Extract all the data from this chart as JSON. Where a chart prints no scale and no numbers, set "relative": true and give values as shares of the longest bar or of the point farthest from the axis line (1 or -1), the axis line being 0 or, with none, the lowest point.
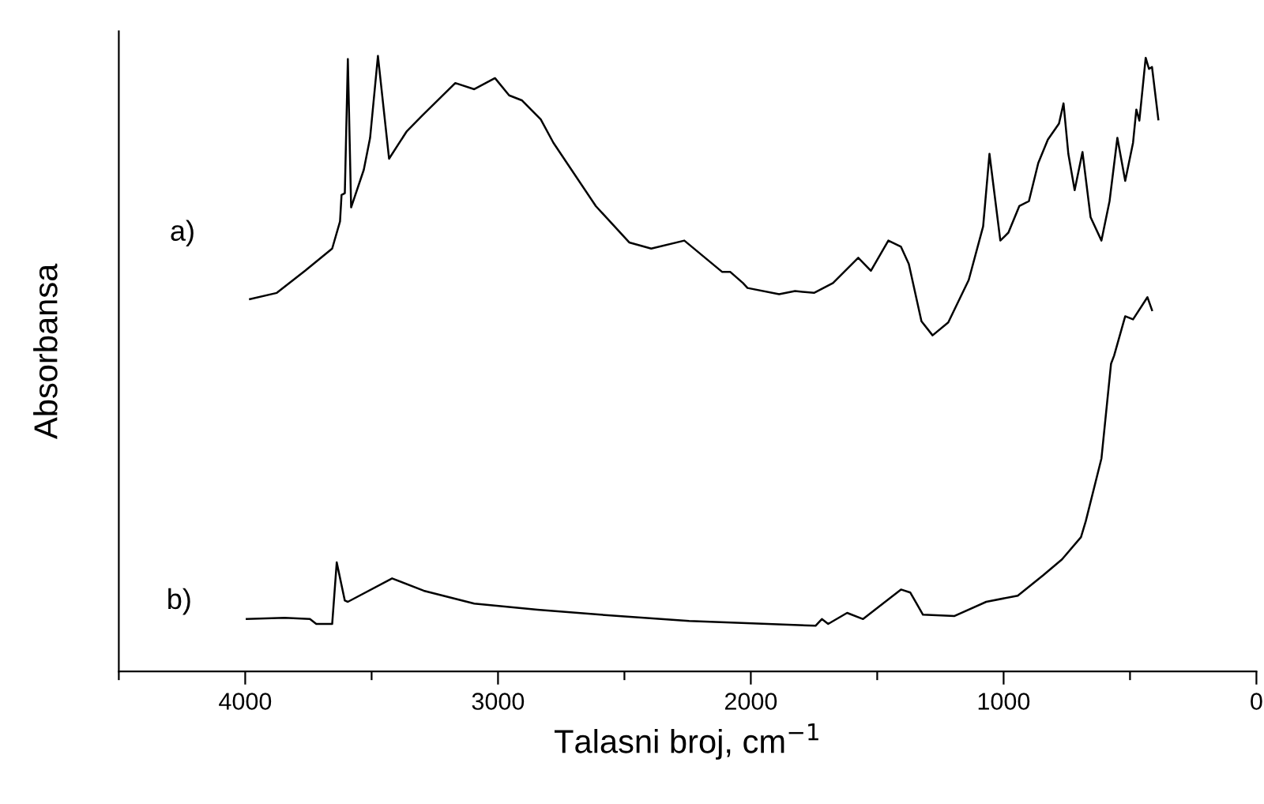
{
  "chart_data": {
    "type": "line",
    "relative": true,
    "xlabel": "Talasni broj, cm$^{−1}$",
    "ylabel": "Absorbansa",
    "xlim": [
      4500,
      0
    ],
    "xticks": [
      {
        "value": 4500,
        "label": null
      },
      4000,
      {
        "value": 3500,
        "label": null
      },
      3000,
      {
        "value": 2500,
        "label": null
      },
      2000,
      {
        "value": 1500,
        "label": null
      },
      1000,
      {
        "value": 500,
        "label": null
      },
      0
    ],
    "tick_labels": "x",
    "grid": false,
    "legend": false,
    "series": [
      {
        "name": "a)",
        "color": "#000000",
        "x": [
          3981,
          3875,
          3763,
          3656,
          3625,
          3619,
          3606,
          3594,
          3581,
          3531,
          3506,
          3475,
          3431,
          3362,
          3300,
          3169,
          3094,
          3012,
          2956,
          2906,
          2831,
          2781,
          2613,
          2481,
          2394,
          2263,
          2113,
          2081,
          2031,
          2013,
          1888,
          1825,
          1750,
          1675,
          1575,
          1525,
          1456,
          1406,
          1375,
          1325,
          1281,
          1219,
          1138,
          1081,
          1056,
          1013,
          981,
          938,
          900,
          863,
          825,
          781,
          763,
          744,
          719,
          688,
          656,
          613,
          581,
          550,
          519,
          488,
          475,
          463,
          438,
          425,
          413,
          388
        ],
        "values": [
          0.605,
          0.615,
          0.651,
          0.687,
          0.731,
          0.774,
          0.777,
          0.995,
          0.754,
          0.815,
          0.867,
          1.0,
          0.833,
          0.877,
          0.903,
          0.956,
          0.946,
          0.964,
          0.936,
          0.928,
          0.897,
          0.859,
          0.756,
          0.697,
          0.687,
          0.7,
          0.649,
          0.649,
          0.631,
          0.623,
          0.613,
          0.618,
          0.615,
          0.631,
          0.672,
          0.651,
          0.7,
          0.69,
          0.662,
          0.569,
          0.546,
          0.567,
          0.636,
          0.723,
          0.841,
          0.7,
          0.713,
          0.756,
          0.764,
          0.826,
          0.864,
          0.89,
          0.923,
          0.841,
          0.782,
          0.844,
          0.738,
          0.7,
          0.764,
          0.867,
          0.797,
          0.859,
          0.913,
          0.895,
          0.997,
          0.979,
          0.982,
          0.897
        ]
      },
      {
        "name": "b)",
        "color": "#000000",
        "x": [
          3994,
          3844,
          3744,
          3719,
          3656,
          3638,
          3606,
          3594,
          3419,
          3294,
          3094,
          2844,
          2594,
          2244,
          1744,
          1719,
          1694,
          1619,
          1556,
          1406,
          1369,
          1319,
          1194,
          1069,
          944,
          844,
          769,
          694,
          675,
          613,
          594,
          575,
          563,
          519,
          488,
          431,
          413
        ],
        "values": [
          0.085,
          0.087,
          0.085,
          0.077,
          0.077,
          0.177,
          0.115,
          0.113,
          0.151,
          0.131,
          0.11,
          0.1,
          0.092,
          0.082,
          0.074,
          0.085,
          0.077,
          0.095,
          0.085,
          0.133,
          0.128,
          0.092,
          0.09,
          0.113,
          0.123,
          0.156,
          0.182,
          0.218,
          0.244,
          0.346,
          0.423,
          0.5,
          0.513,
          0.577,
          0.572,
          0.608,
          0.587
        ]
      }
    ]
  }
}
